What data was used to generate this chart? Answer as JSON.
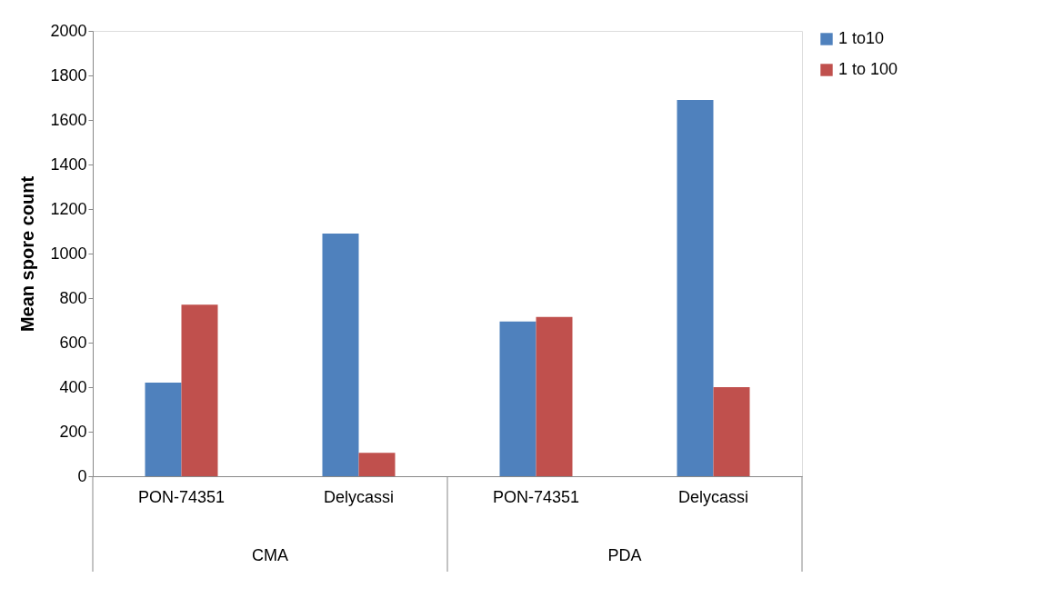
{
  "chart_data": {
    "type": "bar",
    "ylabel": "Mean spore count",
    "categories": [
      "PON-74351",
      "Delycassi",
      "PON-74351",
      "Delycassi"
    ],
    "series": [
      {
        "name": "1 to10",
        "color": "#4f81bd",
        "values": [
          420,
          1090,
          695,
          1690
        ]
      },
      {
        "name": "1 to 100",
        "color": "#c0504d",
        "values": [
          770,
          105,
          715,
          400
        ]
      }
    ],
    "annotations": [
      "CMA",
      "PDA"
    ],
    "ylim": [
      0,
      2000
    ],
    "yticks": [
      0,
      200,
      400,
      600,
      800,
      1000,
      1200,
      1400,
      1600,
      1800,
      2000
    ],
    "grid": false,
    "legend": "right"
  }
}
